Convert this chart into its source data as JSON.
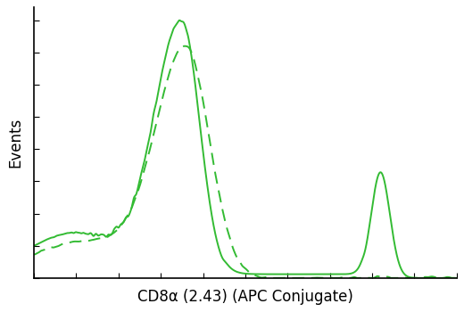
{
  "title": "",
  "xlabel": "CD8α (2.43) (APC Conjugate)",
  "ylabel": "Events",
  "line_color": "#33bb33",
  "background_color": "#ffffff",
  "xlim": [
    0,
    1
  ],
  "ylim": [
    0,
    1.05
  ],
  "xlabel_fontsize": 12,
  "ylabel_fontsize": 12,
  "figsize": [
    5.2,
    3.5
  ],
  "dpi": 100
}
